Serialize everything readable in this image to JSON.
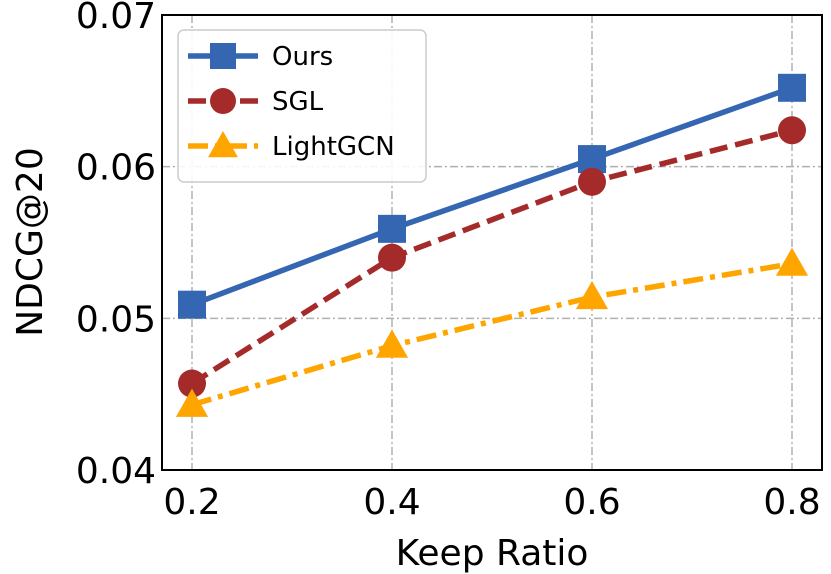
{
  "chart_data": {
    "type": "line",
    "xlabel": "Keep Ratio",
    "ylabel": "NDCG@20",
    "x": [
      0.2,
      0.4,
      0.6,
      0.8
    ],
    "x_tick_labels": [
      "0.2",
      "0.4",
      "0.6",
      "0.8"
    ],
    "y_ticks": [
      0.04,
      0.05,
      0.06,
      0.07
    ],
    "y_tick_labels": [
      "0.04",
      "0.05",
      "0.06",
      "0.07"
    ],
    "xlim": [
      0.17,
      0.83
    ],
    "ylim": [
      0.04,
      0.07
    ],
    "grid": true,
    "legend_position": "top-left",
    "series": [
      {
        "name": "Ours",
        "values": [
          0.0509,
          0.0559,
          0.0605,
          0.0652
        ],
        "color": "#3466b2",
        "line_style": "solid",
        "marker": "square"
      },
      {
        "name": "SGL",
        "values": [
          0.0457,
          0.054,
          0.059,
          0.0624
        ],
        "color": "#a52a2a",
        "line_style": "dashed",
        "marker": "circle"
      },
      {
        "name": "LightGCN",
        "values": [
          0.0443,
          0.0482,
          0.0514,
          0.0536
        ],
        "color": "#ffa500",
        "line_style": "dashdot",
        "marker": "triangle"
      }
    ]
  }
}
